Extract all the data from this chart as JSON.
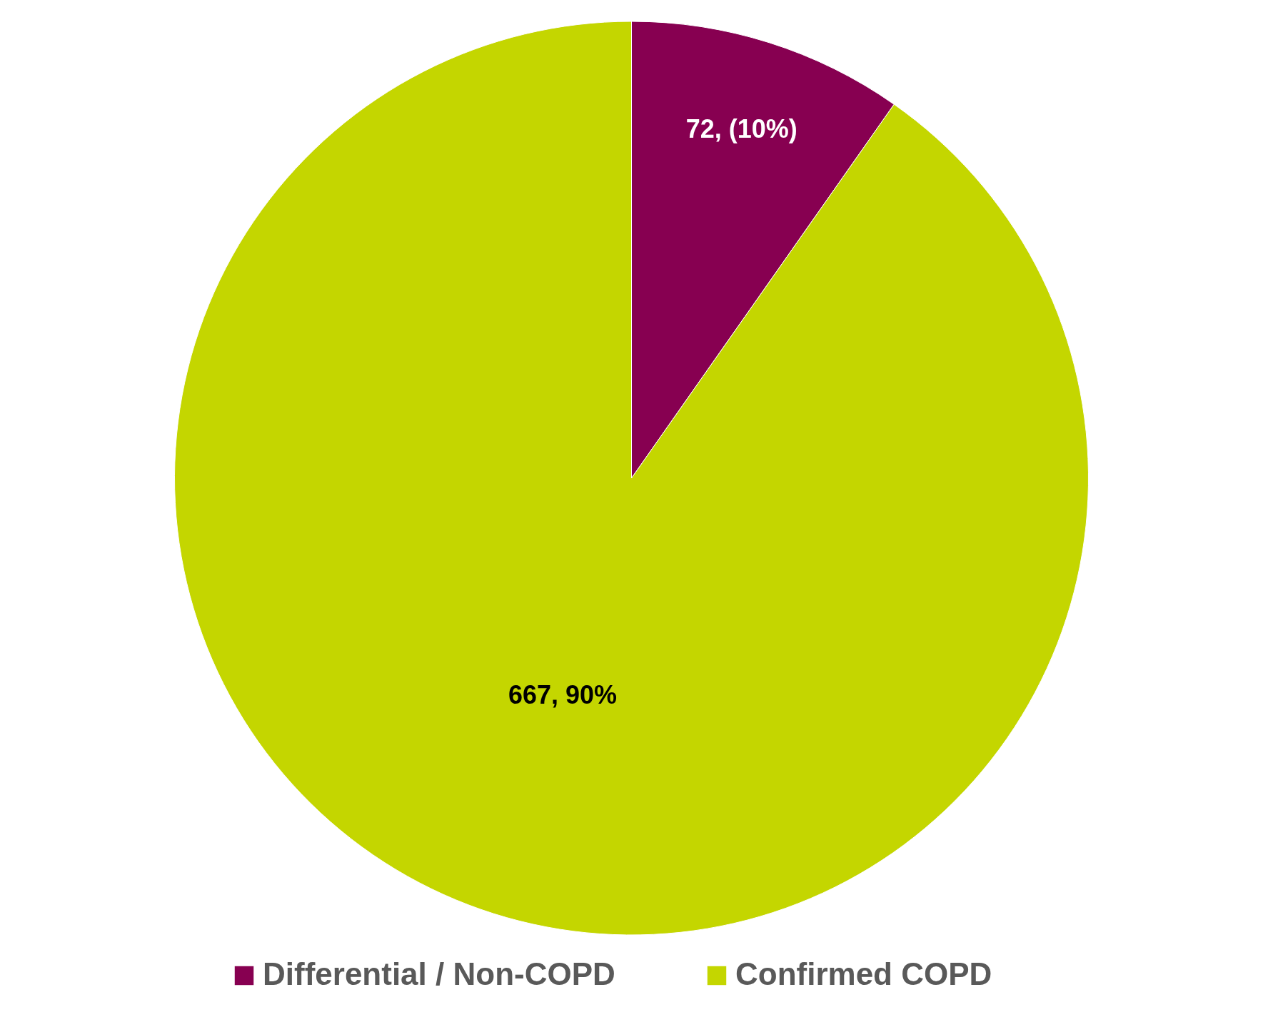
{
  "chart_data": {
    "type": "pie",
    "categories": [
      "Differential / Non-COPD",
      "Confirmed COPD"
    ],
    "values": [
      72,
      667
    ],
    "colors": [
      "#870051",
      "#c4d600"
    ],
    "value_labels": [
      "72, (10%)",
      "667, 90%"
    ],
    "legend": "bottom"
  }
}
